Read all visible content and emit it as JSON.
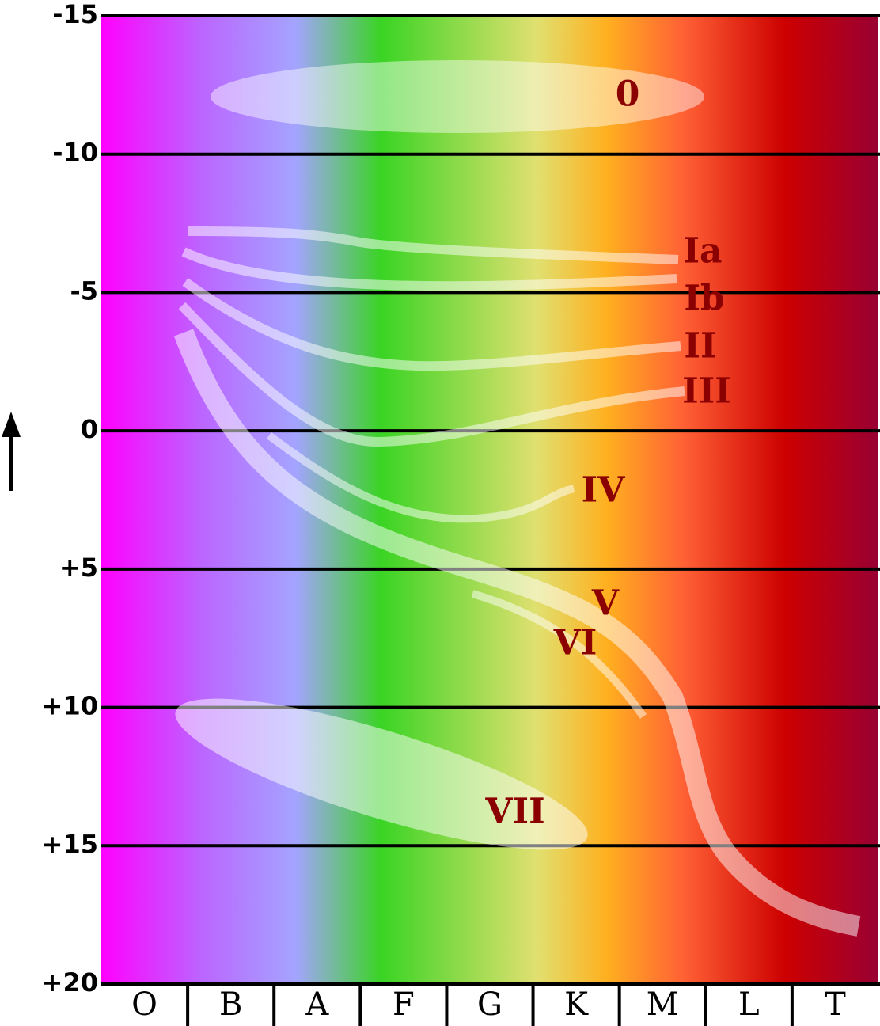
{
  "y_axis": {
    "labels": [
      "-15",
      "-10",
      "-5",
      "0",
      "+5",
      "+10",
      "+15",
      "+20"
    ]
  },
  "spectral_classes": [
    "O",
    "B",
    "A",
    "F",
    "G",
    "K",
    "M",
    "L",
    "T"
  ],
  "luminosity_classes": [
    "0",
    "Ia",
    "Ib",
    "II",
    "III",
    "IV",
    "V",
    "VI",
    "VII"
  ]
}
